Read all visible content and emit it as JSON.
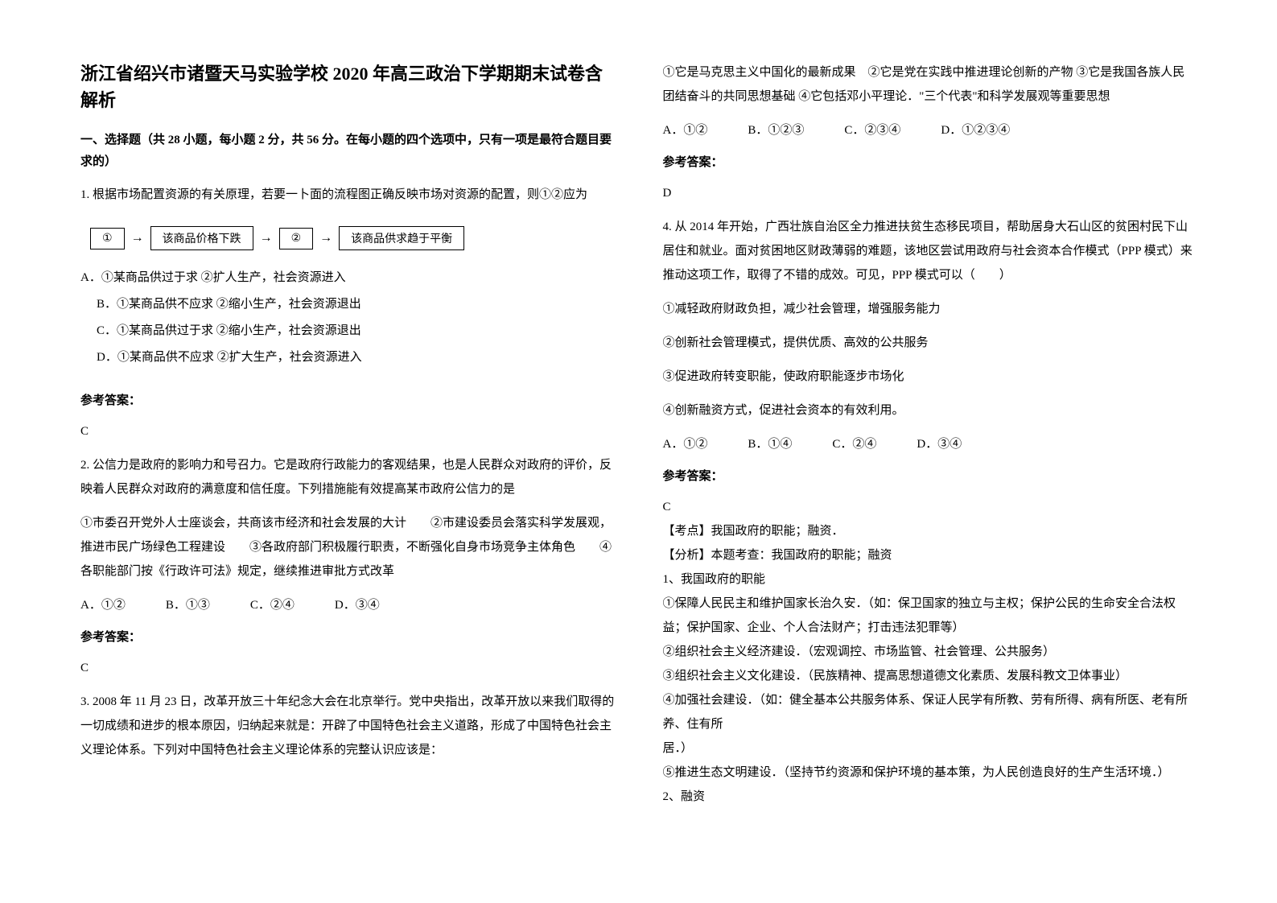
{
  "title": "浙江省绍兴市诸暨天马实验学校 2020 年高三政治下学期期末试卷含解析",
  "section_header": "一、选择题（共 28 小题，每小题 2 分，共 56 分。在每小题的四个选项中，只有一项是最符合题目要求的）",
  "q1": {
    "text": "1. 根据市场配置资源的有关原理，若要一卜面的流程图正确反映市场对资源的配置，则①②应为",
    "flow": {
      "box1": "①",
      "box2": "该商品价格下跌",
      "box3": "②",
      "box4": "该商品供求趋于平衡"
    },
    "optA": "A．①某商品供过于求 ②扩人生产，社会资源进入",
    "optB": "B．①某商品供不应求 ②缩小生产，社会资源退出",
    "optC": "C．①某商品供过于求 ②缩小生产，社会资源退出",
    "optD": "D．①某商品供不应求 ②扩大生产，社会资源进入",
    "answer_label": "参考答案：",
    "answer": "C"
  },
  "q2": {
    "text": "2. 公信力是政府的影响力和号召力。它是政府行政能力的客观结果，也是人民群众对政府的评价，反映着人民群众对政府的满意度和信任度。下列措施能有效提高某市政府公信力的是",
    "sub": "①市委召开党外人士座谈会，共商该市经济和社会发展的大计　　②市建设委员会落实科学发展观，推进市民广场绿色工程建设　　③各政府部门积极履行职责，不断强化自身市场竞争主体角色　　④各职能部门按《行政许可法》规定，继续推进审批方式改革",
    "optA": "A．①②",
    "optB": "B．①③",
    "optC": "C．②④",
    "optD": "D．③④",
    "answer_label": "参考答案：",
    "answer": "C"
  },
  "q3": {
    "text": "3. 2008 年 11 月 23 日，改革开放三十年纪念大会在北京举行。党中央指出，改革开放以来我们取得的一切成绩和进步的根本原因，归纳起来就是：开辟了中国特色社会主义道路，形成了中国特色社会主义理论体系。下列对中国特色社会主义理论体系的完整认识应该是：",
    "sub": "①它是马克思主义中国化的最新成果　②它是党在实践中推进理论创新的产物 ③它是我国各族人民团结奋斗的共同思想基础 ④它包括邓小平理论．\"三个代表\"和科学发展观等重要思想",
    "optA": "A．①②",
    "optB": "B．①②③",
    "optC": "C．②③④",
    "optD": "D．①②③④",
    "answer_label": "参考答案：",
    "answer": "D"
  },
  "q4": {
    "text": "4. 从 2014 年开始，广西壮族自治区全力推进扶贫生态移民项目，帮助居身大石山区的贫困村民下山居住和就业。面对贫困地区财政薄弱的难题，该地区尝试用政府与社会资本合作模式（PPP 模式）来推动这项工作，取得了不错的成效。可见，PPP 模式可以（　　）",
    "sub1": "①减轻政府财政负担，减少社会管理，增强服务能力",
    "sub2": "②创新社会管理模式，提供优质、高效的公共服务",
    "sub3": "③促进政府转变职能，使政府职能逐步市场化",
    "sub4": "④创新融资方式，促进社会资本的有效利用。",
    "optA": "A．①②",
    "optB": "B．①④",
    "optC": "C．②④",
    "optD": "D．③④",
    "answer_label": "参考答案：",
    "answer": "C",
    "analysis1": "【考点】我国政府的职能；融资．",
    "analysis2": "【分析】本题考查：我国政府的职能；融资",
    "analysis3": "1、我国政府的职能",
    "analysis4": "①保障人民民主和维护国家长治久安．（如：保卫国家的独立与主权；保护公民的生命安全合法权益；保护国家、企业、个人合法财产；打击违法犯罪等）",
    "analysis5": "②组织社会主义经济建设．（宏观调控、市场监管、社会管理、公共服务）",
    "analysis6": "③组织社会主义文化建设．（民族精神、提高思想道德文化素质、发展科教文卫体事业）",
    "analysis7": "④加强社会建设．（如：健全基本公共服务体系、保证人民学有所教、劳有所得、病有所医、老有所养、住有所",
    "analysis8": "居．）",
    "analysis9": "⑤推进生态文明建设．（坚持节约资源和保护环境的基本策，为人民创造良好的生产生活环境．）",
    "analysis10": "2、融资"
  }
}
